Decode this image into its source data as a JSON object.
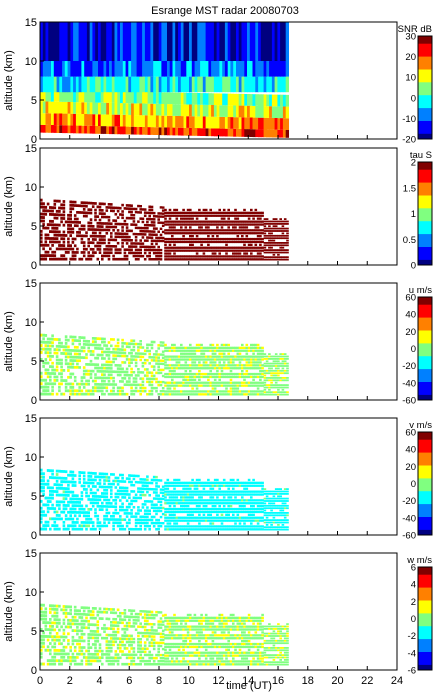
{
  "figure": {
    "title": "Esrange MST radar 20080703",
    "xlabel": "time (UT)"
  },
  "colormap": [
    "#000080",
    "#0000ff",
    "#0080ff",
    "#00ffff",
    "#80ff80",
    "#ffff00",
    "#ff8000",
    "#ff0000",
    "#800000"
  ],
  "chart_data": [
    {
      "type": "heatmap",
      "variable": "SNR",
      "ylabel": "altitude (km)",
      "xlim": [
        0,
        24
      ],
      "ylim": [
        0,
        15
      ],
      "xticks": [
        0,
        2,
        4,
        6,
        8,
        10,
        12,
        14,
        16,
        18,
        20,
        22,
        24
      ],
      "yticks": [
        0,
        5,
        10,
        15
      ],
      "colorbar": {
        "label": "SNR dB",
        "ticks": [
          30,
          20,
          10,
          0,
          -10,
          -20
        ],
        "range": [
          -20,
          30
        ]
      },
      "data_x_range": [
        0,
        16.7
      ],
      "layers": [
        {
          "alt": [
            0.5,
            1.5
          ],
          "value": 22
        },
        {
          "alt": [
            1.5,
            3.0
          ],
          "value": 16
        },
        {
          "alt": [
            3.0,
            4.5
          ],
          "value": 10
        },
        {
          "alt": [
            4.5,
            6.0
          ],
          "value": 6
        },
        {
          "alt": [
            6.0,
            8.0
          ],
          "value": 0
        },
        {
          "alt": [
            8.0,
            10.0
          ],
          "value": -8
        },
        {
          "alt": [
            10.0,
            15.0
          ],
          "value": -14
        }
      ]
    },
    {
      "type": "heatmap",
      "variable": "tau",
      "ylabel": "altitude (km)",
      "xlim": [
        0,
        24
      ],
      "ylim": [
        0,
        15
      ],
      "xticks": [
        0,
        2,
        4,
        6,
        8,
        10,
        12,
        14,
        16,
        18,
        20,
        22,
        24
      ],
      "yticks": [
        0,
        5,
        10,
        15
      ],
      "colorbar": {
        "label": "tau S",
        "ticks": [
          2,
          1.5,
          1,
          0.5,
          0
        ],
        "range": [
          0,
          2
        ]
      },
      "data_x_range": [
        0,
        16.7
      ],
      "dominant_value": 2.0,
      "altitude_extent": [
        0.5,
        8.5
      ]
    },
    {
      "type": "heatmap",
      "variable": "u",
      "ylabel": "altitude (km)",
      "xlim": [
        0,
        24
      ],
      "ylim": [
        0,
        15
      ],
      "xticks": [
        0,
        2,
        4,
        6,
        8,
        10,
        12,
        14,
        16,
        18,
        20,
        22,
        24
      ],
      "yticks": [
        0,
        5,
        10,
        15
      ],
      "colorbar": {
        "label": "u m/s",
        "ticks": [
          60,
          40,
          20,
          0,
          -20,
          -40,
          -60
        ],
        "range": [
          -60,
          60
        ]
      },
      "data_x_range": [
        0,
        16.7
      ],
      "dominant_value": 5,
      "altitude_extent": [
        0.5,
        8.5
      ]
    },
    {
      "type": "heatmap",
      "variable": "v",
      "ylabel": "altitude (km)",
      "xlim": [
        0,
        24
      ],
      "ylim": [
        0,
        15
      ],
      "xticks": [
        0,
        2,
        4,
        6,
        8,
        10,
        12,
        14,
        16,
        18,
        20,
        22,
        24
      ],
      "yticks": [
        0,
        5,
        10,
        15
      ],
      "colorbar": {
        "label": "v m/s",
        "ticks": [
          60,
          40,
          20,
          0,
          -20,
          -40,
          -60
        ],
        "range": [
          -60,
          60
        ]
      },
      "data_x_range": [
        0,
        16.7
      ],
      "dominant_value": -12,
      "altitude_extent": [
        0.5,
        8.5
      ]
    },
    {
      "type": "heatmap",
      "variable": "w",
      "ylabel": "altitude (km)",
      "xlim": [
        0,
        24
      ],
      "ylim": [
        0,
        15
      ],
      "xticks": [
        0,
        2,
        4,
        6,
        8,
        10,
        12,
        14,
        16,
        18,
        20,
        22,
        24
      ],
      "yticks": [
        0,
        5,
        10,
        15
      ],
      "colorbar": {
        "label": "w m/s",
        "ticks": [
          6,
          4,
          2,
          0,
          -2,
          -4,
          -6
        ],
        "range": [
          -6,
          6
        ]
      },
      "data_x_range": [
        0,
        16.7
      ],
      "dominant_value": 0.5,
      "altitude_extent": [
        0.5,
        8.5
      ]
    }
  ]
}
